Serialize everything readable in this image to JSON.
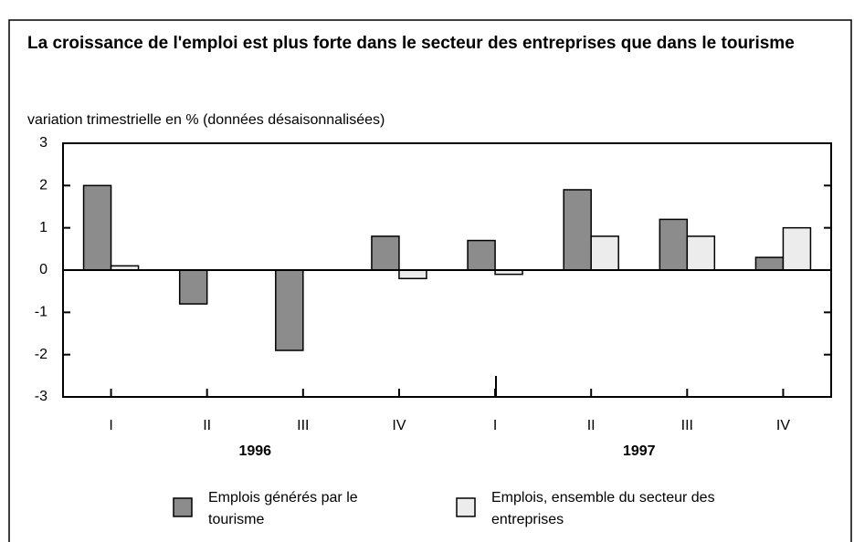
{
  "chart_data": {
    "type": "bar",
    "title": "La croissance de l'emploi est plus forte dans le secteur des entreprises que dans le tourisme",
    "y_label": "variation trimestrielle en % (données désaisonnalisées)",
    "categories": [
      "I",
      "II",
      "III",
      "IV",
      "I",
      "II",
      "III",
      "IV"
    ],
    "category_groups": [
      "1996",
      "1997"
    ],
    "series": [
      {
        "name": "Emplois générés par le tourisme",
        "color": "#8c8c8c",
        "values": [
          2,
          -0.8,
          -1.9,
          0.8,
          0.7,
          1.9,
          1.2,
          0.3
        ]
      },
      {
        "name": "Emplois, ensemble du secteur des entreprises",
        "color": "#ececec",
        "values": [
          0.1,
          0,
          0,
          -0.2,
          -0.1,
          0.8,
          0.8,
          1.0
        ]
      }
    ],
    "ylim": [
      -3,
      3
    ],
    "yticks": [
      -3,
      -2,
      -1,
      0,
      1,
      2,
      3
    ],
    "grid": false
  }
}
